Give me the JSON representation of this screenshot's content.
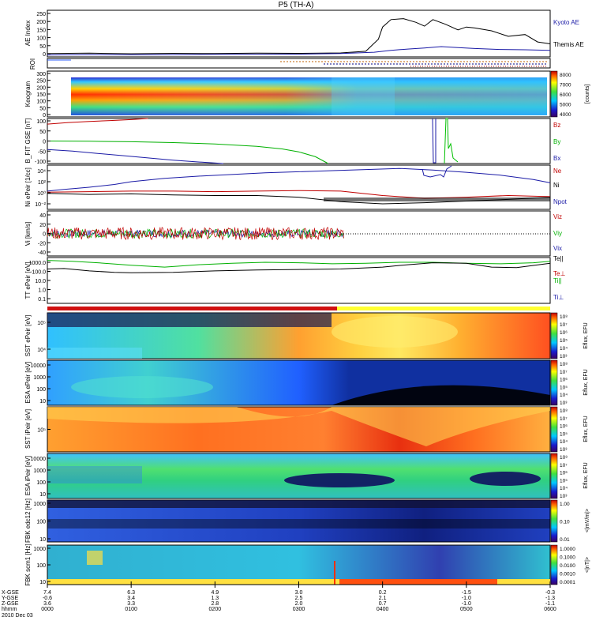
{
  "chart_data": {
    "type": "multi-panel",
    "title": "P5 (TH-A)",
    "time_axis": {
      "range": [
        "0000",
        "0600"
      ],
      "ticks": [
        {
          "hhmm": "0000",
          "x_gse": "7.4",
          "y_gse": "-0.6",
          "z_gse": "3.6"
        },
        {
          "hhmm": "0100",
          "x_gse": "6.3",
          "y_gse": "3.4",
          "z_gse": "3.3"
        },
        {
          "hhmm": "0200",
          "x_gse": "4.9",
          "y_gse": "1.3",
          "z_gse": "2.8"
        },
        {
          "hhmm": "0300",
          "x_gse": "3.0",
          "y_gse": "2.5",
          "z_gse": "2.0"
        },
        {
          "hhmm": "0400",
          "x_gse": "0.2",
          "y_gse": "2.1",
          "z_gse": "0.7"
        },
        {
          "hhmm": "0500",
          "x_gse": "-1.5",
          "y_gse": "-1.0",
          "z_gse": "-1.0"
        },
        {
          "hhmm": "0600",
          "x_gse": "-0.3",
          "y_gse": "-1.3",
          "z_gse": "-1.1"
        }
      ],
      "row_labels": [
        "X-GSE",
        "Y-GSE",
        "Z-GSE",
        "hhmm"
      ],
      "date": "2010 Dec 03"
    },
    "panels": [
      {
        "id": "ae",
        "ylabel": "AE Index",
        "yticks": [
          "250",
          "200",
          "150",
          "100",
          "50",
          "0"
        ],
        "ylim": [
          0,
          250
        ],
        "legend": [
          {
            "label": "Kyoto AE",
            "color": "#1a1aa6"
          },
          {
            "label": "Themis AE",
            "color": "#000000"
          }
        ],
        "series": [
          {
            "name": "Themis AE",
            "color": "#000000",
            "x": [
              0,
              0.5,
              1,
              1.5,
              2,
              2.5,
              3,
              3.5,
              3.8,
              3.95,
              4.0,
              4.1,
              4.25,
              4.4,
              4.5,
              4.6,
              4.75,
              4.9,
              5.0,
              5.1,
              5.3,
              5.5,
              5.7,
              5.85,
              6.0
            ],
            "y": [
              18,
              20,
              17,
              19,
              18,
              20,
              19,
              21,
              30,
              95,
              160,
              200,
              205,
              185,
              165,
              200,
              175,
              145,
              160,
              155,
              140,
              110,
              120,
              80,
              70
            ]
          },
          {
            "name": "Kyoto AE",
            "color": "#1a1aa6",
            "x": [
              0,
              0.5,
              1,
              1.5,
              2,
              2.5,
              3,
              3.5,
              3.9,
              4.1,
              4.3,
              4.5,
              4.7,
              4.9,
              5.1,
              5.4,
              5.7,
              6.0
            ],
            "y": [
              10,
              12,
              11,
              12,
              13,
              14,
              15,
              18,
              25,
              35,
              42,
              48,
              55,
              50,
              45,
              40,
              38,
              35
            ]
          }
        ]
      },
      {
        "id": "roi",
        "ylabel": "ROI",
        "note": "region-of-interest bars"
      },
      {
        "id": "keogram",
        "ylabel": "Keogram",
        "yticks": [
          "300",
          "250",
          "200",
          "150",
          "100",
          "50",
          "0"
        ],
        "ylim": [
          0,
          300
        ],
        "colorbar": {
          "label": "[counts]",
          "ticks": [
            "8000",
            "7000",
            "6000",
            "5000",
            "4000"
          ]
        }
      },
      {
        "id": "bfit",
        "ylabel": "B_FIT GSE [nT]",
        "yticks": [
          "100",
          "50",
          "0",
          "-50",
          "-100"
        ],
        "ylim": [
          -100,
          100
        ],
        "legend": [
          {
            "label": "Bz",
            "color": "#c00000"
          },
          {
            "label": "By",
            "color": "#00b000"
          },
          {
            "label": "Bx",
            "color": "#1a1aa6"
          }
        ],
        "series": [
          {
            "name": "Bz",
            "color": "#c00000",
            "x": [
              0,
              0.25,
              0.5,
              0.75,
              1.0,
              1.2
            ],
            "y": [
              75,
              82,
              87,
              91,
              95,
              100
            ]
          },
          {
            "name": "By",
            "color": "#00b000",
            "x": [
              0,
              0.5,
              1,
              1.5,
              2,
              2.5,
              2.8,
              3.0,
              3.2,
              3.35
            ],
            "y": [
              0,
              -1,
              -3,
              -7,
              -13,
              -24,
              -35,
              -48,
              -70,
              -100
            ]
          },
          {
            "name": "Bx",
            "color": "#1a1aa6",
            "x": [
              0,
              0.3,
              0.6,
              0.9,
              1.2,
              1.5,
              1.8,
              2.1
            ],
            "y": [
              -38,
              -45,
              -55,
              -65,
              -75,
              -85,
              -93,
              -100
            ]
          }
        ]
      },
      {
        "id": "ni",
        "ylabel": "Ni ePeir [1/cc]",
        "yticks": [
          "10⁴",
          "10²",
          "10⁰",
          "10⁻²"
        ],
        "ylim_log10": [
          -3,
          5
        ],
        "legend": [
          {
            "label": "Ne",
            "color": "#c00000"
          },
          {
            "label": "Ni",
            "color": "#000000"
          },
          {
            "label": "Npot",
            "color": "#1a1aa6"
          }
        ],
        "series": [
          {
            "name": "Npot",
            "color": "#1a1aa6",
            "x": [
              0,
              0.2,
              0.5,
              0.8,
              1.0,
              1.4,
              1.8,
              2.2,
              2.6,
              3.0,
              3.4,
              3.8,
              4.2,
              4.6,
              5.0,
              5.4,
              5.8,
              6.0
            ],
            "y": [
              0.3,
              0.6,
              1.0,
              1.5,
              2.0,
              2.6,
              3.0,
              3.3,
              3.6,
              3.8,
              4.0,
              4.2,
              4.4,
              4.1,
              3.7,
              3.2,
              2.4,
              1.8
            ]
          },
          {
            "name": "Ne",
            "color": "#c00000",
            "x": [
              0,
              0.5,
              1,
              1.5,
              2,
              2.5,
              3,
              3.5,
              4,
              4.5,
              5,
              5.5,
              6
            ],
            "y": [
              0.1,
              0.2,
              0.3,
              0.3,
              0.2,
              0.3,
              0.4,
              0.3,
              -0.5,
              -1.0,
              -0.8,
              -0.5,
              -0.7
            ]
          },
          {
            "name": "Ni",
            "color": "#000000",
            "x": [
              0,
              0.5,
              1,
              1.5,
              2,
              2.5,
              3,
              3.5,
              4,
              4.5,
              5,
              5.5,
              6
            ],
            "y": [
              -0.1,
              -0.3,
              -0.2,
              -0.4,
              -0.5,
              -0.5,
              -0.8,
              -1.6,
              -2.0,
              -1.8,
              -1.5,
              -1.2,
              -0.8
            ]
          }
        ]
      },
      {
        "id": "vi",
        "ylabel": "Vi [km/s]",
        "yticks": [
          "40",
          "20",
          "0",
          "-20",
          "-40"
        ],
        "ylim": [
          -50,
          50
        ],
        "legend": [
          {
            "label": "Viz",
            "color": "#c00000"
          },
          {
            "label": "Viy",
            "color": "#00b000"
          },
          {
            "label": "Vix",
            "color": "#1a1aa6"
          }
        ],
        "series": [
          {
            "name": "Viz",
            "color": "#c00000",
            "x_range": [
              0,
              3.0
            ],
            "amplitude": 14
          },
          {
            "name": "Viy",
            "color": "#00b000",
            "x_range": [
              0,
              3.0
            ],
            "amplitude": 10
          },
          {
            "name": "Vix",
            "color": "#1a1aa6",
            "x_range": [
              0,
              3.0
            ],
            "amplitude": 8
          }
        ]
      },
      {
        "id": "tt",
        "ylabel": "TT ePeir [eV]",
        "yticks": [
          "1000.0",
          "100.0",
          "10.0",
          "1.0",
          "0.1"
        ],
        "ylim_log10": [
          -1.3,
          3.5
        ],
        "legend": [
          {
            "label": "Te||",
            "color": "#000000"
          },
          {
            "label": "Te⊥",
            "color": "#c00000"
          },
          {
            "label": "Ti||",
            "color": "#00b000"
          },
          {
            "label": "Ti⊥",
            "color": "#1a1aa6"
          }
        ],
        "series": [
          {
            "name": "Ti||",
            "color": "#00b000",
            "x": [
              0,
              0.3,
              0.6,
              1.0,
              1.4,
              1.8,
              2.2,
              2.6,
              3.0,
              3.4,
              3.8,
              4.2,
              4.6,
              5.0,
              5.4,
              5.8,
              6.0
            ],
            "y": [
              3.2,
              3.1,
              2.95,
              2.7,
              2.5,
              2.75,
              2.9,
              3.0,
              2.95,
              2.85,
              2.9,
              3.0,
              3.0,
              2.9,
              2.85,
              2.95,
              3.1
            ]
          },
          {
            "name": "Te||",
            "color": "#000000",
            "x": [
              0,
              0.2,
              0.5,
              0.8,
              1.0,
              1.5,
              2.0,
              2.5,
              3.0,
              3.5,
              4.0,
              4.3,
              4.6,
              5.0,
              5.3,
              5.6,
              6.0
            ],
            "y": [
              2.3,
              2.35,
              2.1,
              1.95,
              1.9,
              1.95,
              2.1,
              2.2,
              2.25,
              2.3,
              2.5,
              2.75,
              2.95,
              2.9,
              2.5,
              2.45,
              2.9
            ]
          }
        ]
      },
      {
        "id": "status_bar",
        "note": "red then yellow horizontal strip",
        "switch_time": 3.05
      },
      {
        "id": "sst_top",
        "ylabel": "SST ePeir [eV]",
        "yticks": [
          "10⁵",
          "10⁴"
        ],
        "colorbar": {
          "label": "Eflux, EFU",
          "ticks": [
            "10⁸",
            "10⁷",
            "10⁶",
            "10⁵",
            "10⁴",
            "10³"
          ]
        }
      },
      {
        "id": "esa_top",
        "ylabel": "ESA ePeir [eV]",
        "yticks": [
          "10000",
          "1000",
          "100",
          "10"
        ],
        "colorbar": {
          "label": "Eflux, EFU",
          "ticks": [
            "10⁸",
            "10⁷",
            "10⁶",
            "10⁵",
            "10⁴",
            "10³"
          ]
        }
      },
      {
        "id": "sst_bottom",
        "ylabel": "SST iPeir [eV]",
        "yticks": [
          "10⁵"
        ],
        "colorbar": {
          "label": "Eflux, EFU",
          "ticks": [
            "10⁸",
            "10⁷",
            "10⁶",
            "10⁵",
            "10⁴",
            "10³"
          ]
        }
      },
      {
        "id": "esa_bottom",
        "ylabel": "ESA iPeir [eV]",
        "yticks": [
          "10000",
          "1000",
          "100",
          "10"
        ],
        "colorbar": {
          "label": "Eflux, EFU",
          "ticks": [
            "10⁸",
            "10⁷",
            "10⁶",
            "10⁵",
            "10⁴",
            "10³"
          ]
        }
      },
      {
        "id": "fbk_e",
        "ylabel": "FBK edc12 [Hz]",
        "yticks": [
          "1000",
          "100",
          "10"
        ],
        "colorbar": {
          "label": "<|mV/m|>",
          "ticks": [
            "1.00",
            "0.10",
            "0.01"
          ]
        }
      },
      {
        "id": "fbk_b",
        "ylabel": "FBK scm1 [Hz]",
        "yticks": [
          "1000",
          "100",
          "10"
        ],
        "colorbar": {
          "label": "<|nT|>",
          "ticks": [
            "1.0000",
            "0.1000",
            "0.0100",
            "0.0010",
            "0.0001"
          ]
        }
      }
    ]
  }
}
